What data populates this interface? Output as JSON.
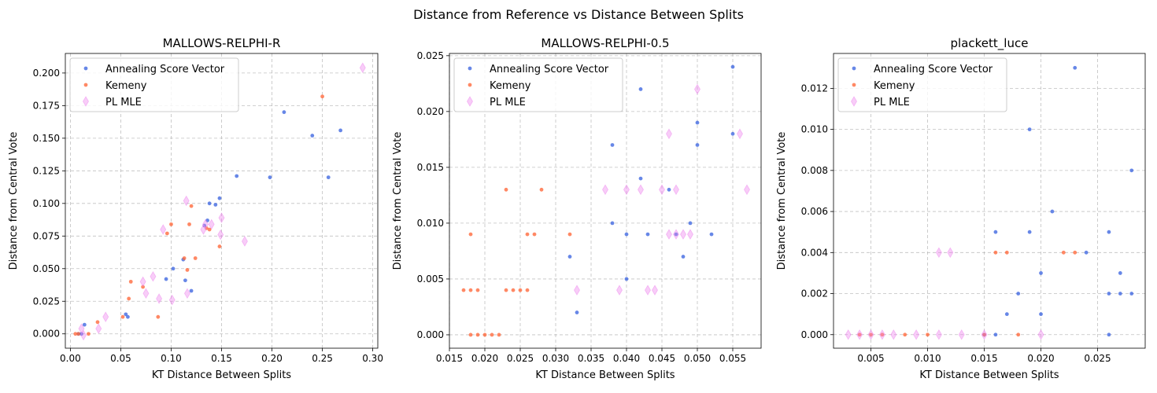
{
  "suptitle": "Distance from Reference vs Distance Between Splits",
  "colors": {
    "Annealing Score Vector": "#4169e1",
    "Kemeny": "#ff6a3d",
    "PL MLE": "#ee82ee"
  },
  "chart_data": [
    {
      "type": "scatter",
      "title": "MALLOWS-RELPHI-R",
      "xlabel": "KT Distance Between Splits",
      "ylabel": "Distance from Central Vote",
      "xlim": [
        -0.005,
        0.305
      ],
      "ylim": [
        -0.011,
        0.215
      ],
      "xticks": [
        0.0,
        0.05,
        0.1,
        0.15,
        0.2,
        0.25,
        0.3
      ],
      "xtick_labels": [
        "0.00",
        "0.05",
        "0.10",
        "0.15",
        "0.20",
        "0.25",
        "0.30"
      ],
      "yticks": [
        0.0,
        0.025,
        0.05,
        0.075,
        0.1,
        0.125,
        0.15,
        0.175,
        0.2
      ],
      "ytick_labels": [
        "0.000",
        "0.025",
        "0.050",
        "0.075",
        "0.100",
        "0.125",
        "0.150",
        "0.175",
        "0.200"
      ],
      "grid": true,
      "legend": "upper-left",
      "series": [
        {
          "name": "Annealing Score Vector",
          "marker": "circle",
          "points": [
            [
              0.008,
              0.0
            ],
            [
              0.011,
              0.0
            ],
            [
              0.014,
              0.007
            ],
            [
              0.055,
              0.015
            ],
            [
              0.057,
              0.013
            ],
            [
              0.095,
              0.042
            ],
            [
              0.102,
              0.05
            ],
            [
              0.112,
              0.057
            ],
            [
              0.114,
              0.041
            ],
            [
              0.12,
              0.033
            ],
            [
              0.133,
              0.083
            ],
            [
              0.136,
              0.087
            ],
            [
              0.138,
              0.1
            ],
            [
              0.144,
              0.099
            ],
            [
              0.148,
              0.104
            ],
            [
              0.165,
              0.121
            ],
            [
              0.198,
              0.12
            ],
            [
              0.212,
              0.17
            ],
            [
              0.24,
              0.152
            ],
            [
              0.256,
              0.12
            ],
            [
              0.268,
              0.156
            ]
          ]
        },
        {
          "name": "Kemeny",
          "marker": "circle",
          "points": [
            [
              0.005,
              0.0
            ],
            [
              0.008,
              0.0
            ],
            [
              0.018,
              0.0
            ],
            [
              0.027,
              0.009
            ],
            [
              0.052,
              0.013
            ],
            [
              0.058,
              0.027
            ],
            [
              0.06,
              0.04
            ],
            [
              0.072,
              0.036
            ],
            [
              0.087,
              0.013
            ],
            [
              0.096,
              0.077
            ],
            [
              0.1,
              0.084
            ],
            [
              0.113,
              0.058
            ],
            [
              0.116,
              0.049
            ],
            [
              0.118,
              0.084
            ],
            [
              0.12,
              0.098
            ],
            [
              0.124,
              0.058
            ],
            [
              0.135,
              0.081
            ],
            [
              0.138,
              0.08
            ],
            [
              0.148,
              0.067
            ],
            [
              0.25,
              0.182
            ]
          ]
        },
        {
          "name": "PL MLE",
          "marker": "diamond",
          "points": [
            [
              0.011,
              0.004
            ],
            [
              0.013,
              -0.001
            ],
            [
              0.028,
              0.004
            ],
            [
              0.035,
              0.013
            ],
            [
              0.072,
              0.04
            ],
            [
              0.075,
              0.031
            ],
            [
              0.082,
              0.044
            ],
            [
              0.088,
              0.027
            ],
            [
              0.092,
              0.08
            ],
            [
              0.101,
              0.026
            ],
            [
              0.115,
              0.102
            ],
            [
              0.116,
              0.031
            ],
            [
              0.132,
              0.08
            ],
            [
              0.134,
              0.084
            ],
            [
              0.14,
              0.084
            ],
            [
              0.149,
              0.076
            ],
            [
              0.15,
              0.089
            ],
            [
              0.173,
              0.071
            ],
            [
              0.29,
              0.204
            ]
          ]
        }
      ]
    },
    {
      "type": "scatter",
      "title": "MALLOWS-RELPHI-0.5",
      "xlabel": "KT Distance Between Splits",
      "ylabel": "Distance from Central Vote",
      "xlim": [
        0.015,
        0.059
      ],
      "ylim": [
        -0.0012,
        0.0252
      ],
      "xticks": [
        0.015,
        0.02,
        0.025,
        0.03,
        0.035,
        0.04,
        0.045,
        0.05,
        0.055
      ],
      "xtick_labels": [
        "0.015",
        "0.020",
        "0.025",
        "0.030",
        "0.035",
        "0.040",
        "0.045",
        "0.050",
        "0.055"
      ],
      "yticks": [
        0.0,
        0.005,
        0.01,
        0.015,
        0.02,
        0.025
      ],
      "ytick_labels": [
        "0.000",
        "0.005",
        "0.010",
        "0.015",
        "0.020",
        "0.025"
      ],
      "grid": true,
      "legend": "upper-left",
      "series": [
        {
          "name": "Annealing Score Vector",
          "marker": "circle",
          "points": [
            [
              0.032,
              0.007
            ],
            [
              0.033,
              0.002
            ],
            [
              0.038,
              0.017
            ],
            [
              0.038,
              0.01
            ],
            [
              0.04,
              0.009
            ],
            [
              0.04,
              0.005
            ],
            [
              0.042,
              0.022
            ],
            [
              0.042,
              0.014
            ],
            [
              0.043,
              0.009
            ],
            [
              0.046,
              0.013
            ],
            [
              0.047,
              0.009
            ],
            [
              0.048,
              0.007
            ],
            [
              0.049,
              0.01
            ],
            [
              0.05,
              0.019
            ],
            [
              0.05,
              0.017
            ],
            [
              0.052,
              0.009
            ],
            [
              0.055,
              0.024
            ],
            [
              0.055,
              0.018
            ]
          ]
        },
        {
          "name": "Kemeny",
          "marker": "circle",
          "points": [
            [
              0.017,
              0.004
            ],
            [
              0.018,
              0.009
            ],
            [
              0.018,
              0.004
            ],
            [
              0.018,
              0.0
            ],
            [
              0.019,
              0.004
            ],
            [
              0.019,
              0.0
            ],
            [
              0.02,
              0.0
            ],
            [
              0.021,
              0.0
            ],
            [
              0.022,
              0.0
            ],
            [
              0.023,
              0.013
            ],
            [
              0.023,
              0.004
            ],
            [
              0.024,
              0.004
            ],
            [
              0.025,
              0.004
            ],
            [
              0.026,
              0.009
            ],
            [
              0.026,
              0.004
            ],
            [
              0.027,
              0.009
            ],
            [
              0.028,
              0.013
            ],
            [
              0.032,
              0.009
            ]
          ]
        },
        {
          "name": "PL MLE",
          "marker": "diamond",
          "points": [
            [
              0.033,
              0.004
            ],
            [
              0.037,
              0.013
            ],
            [
              0.039,
              0.004
            ],
            [
              0.04,
              0.013
            ],
            [
              0.042,
              0.013
            ],
            [
              0.043,
              0.004
            ],
            [
              0.044,
              0.004
            ],
            [
              0.045,
              0.013
            ],
            [
              0.046,
              0.018
            ],
            [
              0.046,
              0.009
            ],
            [
              0.047,
              0.013
            ],
            [
              0.047,
              0.009
            ],
            [
              0.048,
              0.009
            ],
            [
              0.049,
              0.009
            ],
            [
              0.05,
              0.022
            ],
            [
              0.056,
              0.018
            ],
            [
              0.057,
              0.013
            ]
          ]
        }
      ]
    },
    {
      "type": "scatter",
      "title": "plackett_luce",
      "xlabel": "KT Distance Between Splits",
      "ylabel": "Distance from Central Vote",
      "xlim": [
        0.0017,
        0.0292
      ],
      "ylim": [
        -0.00066,
        0.0137
      ],
      "xticks": [
        0.005,
        0.01,
        0.015,
        0.02,
        0.025
      ],
      "xtick_labels": [
        "0.005",
        "0.010",
        "0.015",
        "0.020",
        "0.025"
      ],
      "yticks": [
        0.0,
        0.002,
        0.004,
        0.006,
        0.008,
        0.01,
        0.012
      ],
      "ytick_labels": [
        "0.000",
        "0.002",
        "0.004",
        "0.006",
        "0.008",
        "0.010",
        "0.012"
      ],
      "grid": true,
      "legend": "upper-left",
      "series": [
        {
          "name": "Annealing Score Vector",
          "marker": "circle",
          "points": [
            [
              0.015,
              0.0
            ],
            [
              0.016,
              0.005
            ],
            [
              0.016,
              0.0
            ],
            [
              0.017,
              0.001
            ],
            [
              0.018,
              0.002
            ],
            [
              0.019,
              0.01
            ],
            [
              0.019,
              0.005
            ],
            [
              0.02,
              0.003
            ],
            [
              0.02,
              0.001
            ],
            [
              0.021,
              0.006
            ],
            [
              0.023,
              0.013
            ],
            [
              0.024,
              0.004
            ],
            [
              0.026,
              0.005
            ],
            [
              0.026,
              0.002
            ],
            [
              0.026,
              0.0
            ],
            [
              0.027,
              0.003
            ],
            [
              0.027,
              0.002
            ],
            [
              0.028,
              0.008
            ],
            [
              0.028,
              0.002
            ]
          ]
        },
        {
          "name": "Kemeny",
          "marker": "circle",
          "points": [
            [
              0.004,
              0.0
            ],
            [
              0.005,
              0.0
            ],
            [
              0.006,
              0.0
            ],
            [
              0.008,
              0.0
            ],
            [
              0.01,
              0.0
            ],
            [
              0.015,
              0.0
            ],
            [
              0.016,
              0.004
            ],
            [
              0.017,
              0.004
            ],
            [
              0.018,
              0.0
            ],
            [
              0.022,
              0.004
            ],
            [
              0.023,
              0.004
            ]
          ]
        },
        {
          "name": "PL MLE",
          "marker": "diamond",
          "points": [
            [
              0.003,
              0.0
            ],
            [
              0.004,
              0.0
            ],
            [
              0.005,
              0.0
            ],
            [
              0.006,
              0.0
            ],
            [
              0.007,
              0.0
            ],
            [
              0.009,
              0.0
            ],
            [
              0.011,
              0.004
            ],
            [
              0.011,
              0.0
            ],
            [
              0.012,
              0.004
            ],
            [
              0.013,
              0.0
            ],
            [
              0.015,
              0.0
            ],
            [
              0.02,
              0.0
            ]
          ]
        }
      ]
    }
  ]
}
